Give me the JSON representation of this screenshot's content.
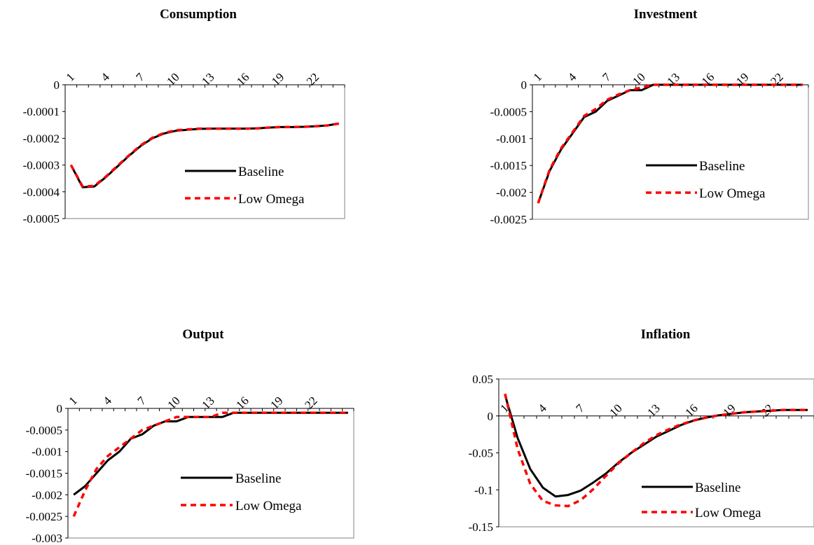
{
  "figure": {
    "colors": {
      "baseline": "#000000",
      "low_omega": "#ff0000",
      "axis": "#000000",
      "border": "#808080"
    }
  },
  "chart_data": [
    {
      "type": "line",
      "title": "Consumption",
      "x": [
        1,
        2,
        3,
        4,
        5,
        6,
        7,
        8,
        9,
        10,
        11,
        12,
        13,
        14,
        15,
        16,
        17,
        18,
        19,
        20,
        21,
        22,
        23,
        24
      ],
      "x_tick_labels": [
        "1",
        "4",
        "7",
        "10",
        "13",
        "16",
        "19",
        "22"
      ],
      "x_ticks": [
        1,
        4,
        7,
        10,
        13,
        16,
        19,
        22
      ],
      "x_axis_position": "top",
      "x_tick_label_rotation": "-45",
      "ylim": [
        -0.0005,
        0
      ],
      "y_ticks": [
        0,
        -0.0001,
        -0.0002,
        -0.0003,
        -0.0004,
        -0.0005
      ],
      "y_tick_labels": [
        "0",
        "-0.0001",
        "-0.0002",
        "-0.0003",
        "-0.0004",
        "-0.0005"
      ],
      "legend_position": "lower-right",
      "series": [
        {
          "name": "Baseline",
          "style": "solid",
          "values": [
            -0.0003,
            -0.000383,
            -0.00038,
            -0.000345,
            -0.000305,
            -0.000265,
            -0.000228,
            -0.0002,
            -0.000182,
            -0.000172,
            -0.000168,
            -0.000165,
            -0.000164,
            -0.000164,
            -0.000164,
            -0.000164,
            -0.000163,
            -0.00016,
            -0.000158,
            -0.000158,
            -0.000157,
            -0.000155,
            -0.000152,
            -0.000145
          ]
        },
        {
          "name": "Low Omega",
          "style": "dashed",
          "values": [
            -0.0003,
            -0.00038,
            -0.000378,
            -0.000343,
            -0.000303,
            -0.000263,
            -0.000226,
            -0.000198,
            -0.00018,
            -0.00017,
            -0.000167,
            -0.000164,
            -0.000164,
            -0.000164,
            -0.000164,
            -0.000164,
            -0.000163,
            -0.00016,
            -0.000158,
            -0.000158,
            -0.000157,
            -0.000155,
            -0.000152,
            -0.000145
          ]
        }
      ]
    },
    {
      "type": "line",
      "title": "Investment",
      "x": [
        1,
        2,
        3,
        4,
        5,
        6,
        7,
        8,
        9,
        10,
        11,
        12,
        13,
        14,
        15,
        16,
        17,
        18,
        19,
        20,
        21,
        22,
        23,
        24
      ],
      "x_tick_labels": [
        "1",
        "4",
        "7",
        "10",
        "13",
        "16",
        "19",
        "22"
      ],
      "x_ticks": [
        1,
        4,
        7,
        10,
        13,
        16,
        19,
        22
      ],
      "x_axis_position": "top",
      "x_tick_label_rotation": "-45",
      "ylim": [
        -0.0025,
        0
      ],
      "y_ticks": [
        0,
        -0.0005,
        -0.001,
        -0.0015,
        -0.002,
        -0.0025
      ],
      "y_tick_labels": [
        "0",
        "-0.0005",
        "-0.001",
        "-0.0015",
        "-0.002",
        "-0.0025"
      ],
      "legend_position": "lower-right",
      "series": [
        {
          "name": "Baseline",
          "style": "solid",
          "values": [
            -0.0022,
            -0.0016,
            -0.0012,
            -0.0009,
            -0.0006,
            -0.0005,
            -0.0003,
            -0.0002,
            -0.0001,
            -0.0001,
            0,
            0,
            0,
            0,
            0,
            0,
            0,
            0,
            0,
            0,
            0,
            0,
            0,
            0
          ]
        },
        {
          "name": "Low Omega",
          "style": "dashed",
          "values": [
            -0.0022,
            -0.00158,
            -0.00118,
            -0.00088,
            -0.00058,
            -0.00045,
            -0.00028,
            -0.00018,
            -0.0001,
            -5e-05,
            0,
            0,
            0,
            0,
            0,
            0,
            0,
            0,
            0,
            0,
            0,
            0,
            0,
            0
          ]
        }
      ]
    },
    {
      "type": "line",
      "title": "Output",
      "x": [
        1,
        2,
        3,
        4,
        5,
        6,
        7,
        8,
        9,
        10,
        11,
        12,
        13,
        14,
        15,
        16,
        17,
        18,
        19,
        20,
        21,
        22,
        23,
        24,
        25
      ],
      "x_tick_labels": [
        "1",
        "4",
        "7",
        "10",
        "13",
        "16",
        "19",
        "22"
      ],
      "x_ticks": [
        1,
        4,
        7,
        10,
        13,
        16,
        19,
        22
      ],
      "x_axis_position": "top",
      "x_tick_label_rotation": "-45",
      "ylim": [
        -0.003,
        0
      ],
      "y_ticks": [
        0,
        -0.0005,
        -0.001,
        -0.0015,
        -0.002,
        -0.0025,
        -0.003
      ],
      "y_tick_labels": [
        "0",
        "-0.0005",
        "-0.001",
        "-0.0015",
        "-0.002",
        "-0.0025",
        "-0.003"
      ],
      "legend_position": "lower-right",
      "series": [
        {
          "name": "Baseline",
          "style": "solid",
          "values": [
            -0.002,
            -0.0018,
            -0.0015,
            -0.0012,
            -0.001,
            -0.0007,
            -0.0006,
            -0.0004,
            -0.0003,
            -0.0003,
            -0.0002,
            -0.0002,
            -0.0002,
            -0.0002,
            -0.0001,
            -0.0001,
            -0.0001,
            -0.0001,
            -0.0001,
            -0.0001,
            -0.0001,
            -0.0001,
            -0.0001,
            -0.0001,
            -0.0001
          ]
        },
        {
          "name": "Low Omega",
          "style": "dashed",
          "values": [
            -0.0025,
            -0.0019,
            -0.0014,
            -0.0011,
            -0.0009,
            -0.0007,
            -0.0005,
            -0.0004,
            -0.0003,
            -0.0002,
            -0.0002,
            -0.0002,
            -0.0002,
            -0.0001,
            -0.0001,
            -0.0001,
            -0.0001,
            -0.0001,
            -0.0001,
            -0.0001,
            -0.0001,
            -0.0001,
            -0.0001,
            -0.0001,
            -0.0001
          ]
        }
      ]
    },
    {
      "type": "line",
      "title": "Inflation",
      "x": [
        1,
        2,
        3,
        4,
        5,
        6,
        7,
        8,
        9,
        10,
        11,
        12,
        13,
        14,
        15,
        16,
        17,
        18,
        19,
        20,
        21,
        22,
        23,
        24,
        25
      ],
      "x_tick_labels": [
        "1",
        "4",
        "7",
        "10",
        "13",
        "16",
        "19",
        "22"
      ],
      "x_ticks": [
        1,
        4,
        7,
        10,
        13,
        16,
        19,
        22
      ],
      "x_axis_position": "zero",
      "x_tick_label_rotation": "-45",
      "ylim": [
        -0.15,
        0.05
      ],
      "y_ticks": [
        0.05,
        0,
        -0.05,
        -0.1,
        -0.15
      ],
      "y_tick_labels": [
        "0.05",
        "0",
        "-0.05",
        "-0.1",
        "-0.15"
      ],
      "legend_position": "lower-right",
      "series": [
        {
          "name": "Baseline",
          "style": "solid",
          "values": [
            0.028,
            -0.03,
            -0.072,
            -0.097,
            -0.109,
            -0.107,
            -0.101,
            -0.09,
            -0.078,
            -0.063,
            -0.05,
            -0.039,
            -0.028,
            -0.02,
            -0.012,
            -0.006,
            -0.002,
            0.001,
            0.003,
            0.005,
            0.006,
            0.007,
            0.008,
            0.008,
            0.008
          ]
        },
        {
          "name": "Low Omega",
          "style": "dashed",
          "values": [
            0.03,
            -0.045,
            -0.092,
            -0.115,
            -0.121,
            -0.122,
            -0.114,
            -0.099,
            -0.081,
            -0.064,
            -0.05,
            -0.037,
            -0.026,
            -0.018,
            -0.011,
            -0.006,
            -0.002,
            0.001,
            0.003,
            0.005,
            0.006,
            0.007,
            0.008,
            0.008,
            0.008
          ]
        }
      ]
    }
  ]
}
